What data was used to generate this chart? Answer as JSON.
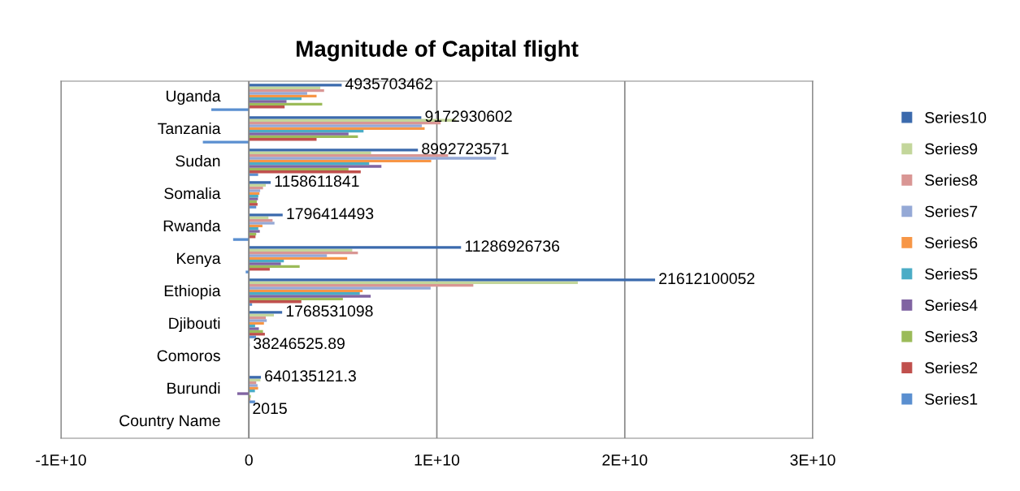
{
  "chart_data": {
    "type": "bar",
    "orientation": "horizontal",
    "title": "Magnitude of Capital flight",
    "categories": [
      "Uganda",
      "Tanzania",
      "Sudan",
      "Somalia",
      "Rwanda",
      "Kenya",
      "Ethiopia",
      "Djibouti",
      "Comoros",
      "Burundi",
      "Country Name"
    ],
    "series": [
      {
        "name": "Series1",
        "color": "#5a8fd0",
        "values": [
          -2000000000.0,
          -2450000000.0,
          490000000.0,
          390000000.0,
          -840000000.0,
          -170000000.0,
          170000000.0,
          380000000.0,
          10000000.0,
          330000000.0,
          null
        ]
      },
      {
        "name": "Series2",
        "color": "#c0504d",
        "values": [
          1900000000.0,
          3600000000.0,
          5950000000.0,
          460000000.0,
          350000000.0,
          1110000000.0,
          2790000000.0,
          850000000.0,
          10000000.0,
          60000000.0,
          null
        ]
      },
      {
        "name": "Series3",
        "color": "#9bbb59",
        "values": [
          3900000000.0,
          5800000000.0,
          5300000000.0,
          420000000.0,
          390000000.0,
          2700000000.0,
          5000000000.0,
          750000000.0,
          20000000.0,
          100000000.0,
          null
        ]
      },
      {
        "name": "Series4",
        "color": "#8064a2",
        "values": [
          2000000000.0,
          5300000000.0,
          7050000000.0,
          480000000.0,
          580000000.0,
          1700000000.0,
          6480000000.0,
          530000000.0,
          10000000.0,
          -620000000.0,
          null
        ]
      },
      {
        "name": "Series5",
        "color": "#4bacc6",
        "values": [
          2800000000.0,
          6100000000.0,
          6400000000.0,
          500000000.0,
          500000000.0,
          1860000000.0,
          5900000000.0,
          330000000.0,
          20000000.0,
          320000000.0,
          null
        ]
      },
      {
        "name": "Series6",
        "color": "#f79646",
        "values": [
          3600000000.0,
          9350000000.0,
          9700000000.0,
          560000000.0,
          720000000.0,
          5230000000.0,
          6050000000.0,
          800000000.0,
          null,
          490000000.0,
          null
        ]
      },
      {
        "name": "Series7",
        "color": "#95a9d6",
        "values": [
          3100000000.0,
          9200000000.0,
          13150000000.0,
          600000000.0,
          1360000000.0,
          4150000000.0,
          9670000000.0,
          950000000.0,
          30000000.0,
          460000000.0,
          null
        ]
      },
      {
        "name": "Series8",
        "color": "#d99694",
        "values": [
          4000000000.0,
          10200000000.0,
          10600000000.0,
          750000000.0,
          1260000000.0,
          5800000000.0,
          11940000000.0,
          900000000.0,
          null,
          390000000.0,
          null
        ]
      },
      {
        "name": "Series9",
        "color": "#c3d69b",
        "values": [
          3800000000.0,
          11000000000.0,
          6500000000.0,
          900000000.0,
          1040000000.0,
          5500000000.0,
          17500000000.0,
          1330000000.0,
          null,
          610000000.0,
          null
        ]
      },
      {
        "name": "Series10",
        "color": "#3b6aad",
        "values": [
          4935703462,
          9172930602,
          8992723571,
          1158611841,
          1796414493,
          11286926736,
          21612100052,
          1768531098,
          38246525.89,
          640135121.3,
          2015
        ],
        "value_labels": [
          "4935703462",
          "9172930602",
          "8992723571",
          "1158611841",
          "1796414493",
          "11286926736",
          "21612100052",
          "1768531098",
          "38246525.89",
          "640135121.3",
          "2015"
        ]
      }
    ],
    "xlim": [
      -10000000000.0,
      30000000000.0
    ],
    "xticks": [
      {
        "value": -10000000000.0,
        "label": "-1E+10"
      },
      0,
      {
        "value": 10000000000.0,
        "label": "1E+10"
      },
      {
        "value": 20000000000.0,
        "label": "2E+10"
      },
      {
        "value": 30000000000.0,
        "label": "3E+10"
      }
    ],
    "grid": "x",
    "legend": "right"
  }
}
